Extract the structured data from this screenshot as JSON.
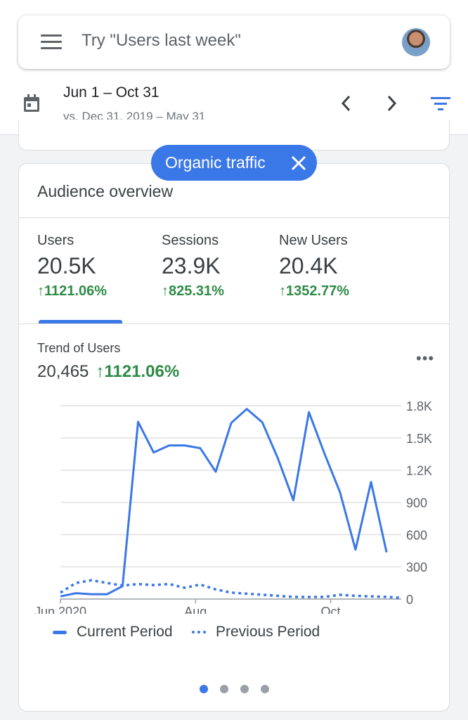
{
  "search": {
    "placeholder": "Try \"Users last week\""
  },
  "date": {
    "range": "Jun 1 – Oct 31",
    "compare": "vs. Dec 31, 2019 – May 31"
  },
  "filter_chip": {
    "label": "Organic traffic"
  },
  "card": {
    "title": "Audience overview",
    "metrics": [
      {
        "label": "Users",
        "value": "20.5K",
        "change": "↑1121.06%"
      },
      {
        "label": "Sessions",
        "value": "23.9K",
        "change": "↑825.31%"
      },
      {
        "label": "New Users",
        "value": "20.4K",
        "change": "↑1352.77%"
      }
    ],
    "trend": {
      "label": "Trend of Users",
      "value": "20,465",
      "change": "↑1121.06%",
      "more": "•••"
    },
    "pagination": {
      "pages": 4,
      "current": 1
    }
  },
  "colors": {
    "accent": "#3b78e7",
    "positive": "#2e8b47"
  },
  "chart_data": {
    "type": "line",
    "title": "Trend of Users",
    "x_ticks": [
      {
        "label": "Jun 2020",
        "index": 0
      },
      {
        "label": "Aug",
        "index": 8.7
      },
      {
        "label": "Oct",
        "index": 17.4
      }
    ],
    "y_ticks": [
      "0",
      "300",
      "600",
      "900",
      "1.2K",
      "1.5K",
      "1.8K"
    ],
    "ylim": [
      0,
      1800
    ],
    "grid": true,
    "legend_position": "bottom",
    "series": [
      {
        "name": "Current Period",
        "style": "solid",
        "values": [
          25,
          55,
          45,
          45,
          120,
          1650,
          1365,
          1430,
          1430,
          1405,
          1185,
          1640,
          1770,
          1645,
          1310,
          920,
          1740,
          1355,
          995,
          460,
          1090,
          435
        ]
      },
      {
        "name": "Previous Period",
        "style": "dotted",
        "values": [
          60,
          150,
          175,
          150,
          125,
          140,
          130,
          140,
          105,
          135,
          90,
          60,
          50,
          40,
          30,
          20,
          20,
          20,
          40,
          30,
          25,
          20,
          10
        ]
      }
    ]
  }
}
